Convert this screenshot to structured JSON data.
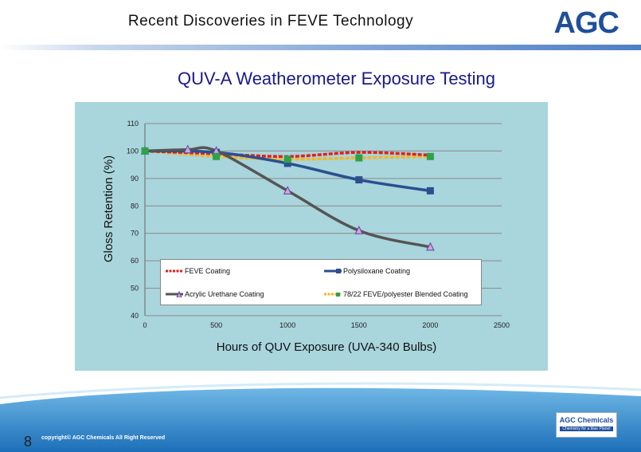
{
  "header": {
    "title": "Recent Discoveries in FEVE Technology",
    "logo_text": "AGC"
  },
  "chart_title": "QUV-A  Weatherometer  Exposure  Testing",
  "footer": {
    "page_number": "8",
    "copyright": "copyright© AGC Chemicals All Right Reserved",
    "logo_line1": "AGC Chemicals",
    "logo_line2": "Chemistry for a blue Planet"
  },
  "colors": {
    "chart_background": "#a9d5dc",
    "accent": "#1f4e9c"
  },
  "chart_data": {
    "type": "line",
    "title": "QUV-A  Weatherometer  Exposure  Testing",
    "xlabel": "Hours of QUV Exposure  (UVA-340 Bulbs)",
    "ylabel": "Gloss Retention (%)",
    "xlim": [
      0,
      2500
    ],
    "ylim": [
      40,
      110
    ],
    "xticks": [
      0,
      500,
      1000,
      1500,
      2000,
      2500
    ],
    "yticks": [
      40,
      50,
      60,
      70,
      80,
      90,
      100,
      110
    ],
    "grid": "horizontal",
    "legend_position": "bottom-inside",
    "series": [
      {
        "name": "FEVE  Coating",
        "color": "#e0201c",
        "marker": "none",
        "x": [
          0,
          500,
          1000,
          1500,
          2000
        ],
        "y": [
          100,
          99,
          98,
          99.5,
          98.5
        ]
      },
      {
        "name": "Polysiloxane Coating",
        "color": "#2c4f8f",
        "marker": "square",
        "x": [
          0,
          500,
          1000,
          1500,
          2000
        ],
        "y": [
          100,
          99.5,
          95.5,
          89.5,
          85.5
        ]
      },
      {
        "name": "Acrylic Urethane Coating",
        "color": "#555555",
        "marker": "triangle",
        "x": [
          0,
          300,
          500,
          1000,
          1500,
          2000
        ],
        "y": [
          100,
          100.5,
          100,
          85.5,
          71,
          65
        ]
      },
      {
        "name": "78/22 FEVE/polyester Blended Coating",
        "color": "#f5b622",
        "marker": "square-green",
        "x": [
          0,
          500,
          1000,
          1500,
          2000
        ],
        "y": [
          100,
          98,
          97,
          97.5,
          98
        ]
      }
    ]
  }
}
